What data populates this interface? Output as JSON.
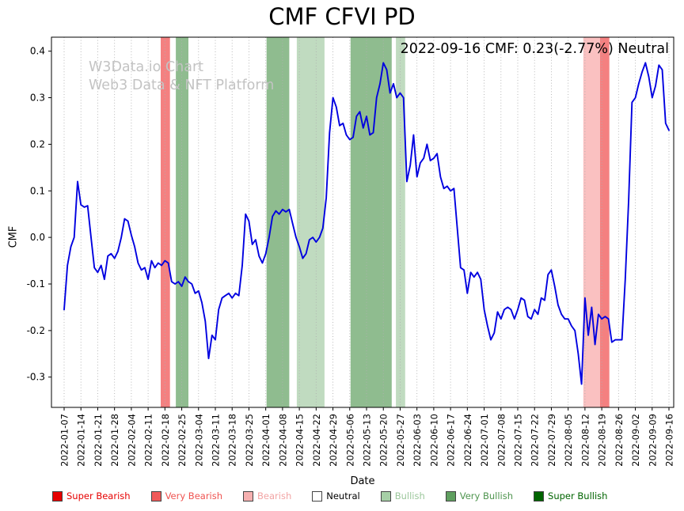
{
  "chart_data": {
    "type": "line",
    "title": "CMF CFVI PD",
    "annotation": "2022-09-16 CMF: 0.23(-2.77%) Neutral",
    "watermark_line1": "W3Data.io Chart",
    "watermark_line2": "Web3 Data & NFT Platform",
    "xlabel": "Date",
    "ylabel": "CMF",
    "ylim": [
      -0.365,
      0.43
    ],
    "yticks": [
      0.4,
      0.3,
      0.2,
      0.1,
      0.0,
      -0.1,
      -0.2,
      -0.3
    ],
    "ytick_labels": [
      "0.4",
      "0.3",
      "0.2",
      "0.1",
      "0.0",
      "-0.1",
      "-0.2",
      "-0.3"
    ],
    "x_tick_labels": [
      "2022-01-07",
      "2022-01-14",
      "2022-01-21",
      "2022-01-28",
      "2022-02-04",
      "2022-02-11",
      "2022-02-18",
      "2022-02-25",
      "2022-03-04",
      "2022-03-11",
      "2022-03-18",
      "2022-03-25",
      "2022-04-01",
      "2022-04-08",
      "2022-04-15",
      "2022-04-22",
      "2022-04-29",
      "2022-05-06",
      "2022-05-13",
      "2022-05-20",
      "2022-05-27",
      "2022-06-03",
      "2022-06-10",
      "2022-06-17",
      "2022-06-24",
      "2022-07-01",
      "2022-07-08",
      "2022-07-15",
      "2022-07-22",
      "2022-07-29",
      "2022-08-05",
      "2022-08-12",
      "2022-08-19",
      "2022-08-26",
      "2022-09-02",
      "2022-09-09",
      "2022-09-16"
    ],
    "grid": "vertical-dotted",
    "line_color": "#0000e0",
    "series": [
      {
        "name": "CMF",
        "values": [
          -0.155,
          -0.06,
          -0.02,
          0.0,
          0.12,
          0.07,
          0.065,
          0.068,
          0.0,
          -0.065,
          -0.075,
          -0.06,
          -0.09,
          -0.04,
          -0.035,
          -0.045,
          -0.03,
          0.0,
          0.04,
          0.035,
          0.005,
          -0.02,
          -0.055,
          -0.07,
          -0.065,
          -0.09,
          -0.05,
          -0.065,
          -0.055,
          -0.06,
          -0.05,
          -0.055,
          -0.095,
          -0.1,
          -0.095,
          -0.105,
          -0.085,
          -0.095,
          -0.1,
          -0.12,
          -0.115,
          -0.14,
          -0.18,
          -0.26,
          -0.21,
          -0.22,
          -0.155,
          -0.13,
          -0.125,
          -0.12,
          -0.13,
          -0.12,
          -0.125,
          -0.06,
          0.05,
          0.035,
          -0.015,
          -0.005,
          -0.04,
          -0.055,
          -0.035,
          0.0,
          0.045,
          0.057,
          0.05,
          0.06,
          0.055,
          0.06,
          0.03,
          0.0,
          -0.02,
          -0.045,
          -0.035,
          -0.005,
          0.0,
          -0.01,
          0.0,
          0.02,
          0.085,
          0.225,
          0.3,
          0.28,
          0.24,
          0.245,
          0.22,
          0.21,
          0.215,
          0.26,
          0.27,
          0.235,
          0.26,
          0.22,
          0.225,
          0.3,
          0.33,
          0.375,
          0.36,
          0.31,
          0.33,
          0.3,
          0.31,
          0.3,
          0.12,
          0.155,
          0.22,
          0.13,
          0.16,
          0.17,
          0.2,
          0.165,
          0.17,
          0.18,
          0.13,
          0.105,
          0.11,
          0.1,
          0.105,
          0.02,
          -0.065,
          -0.07,
          -0.12,
          -0.075,
          -0.085,
          -0.075,
          -0.09,
          -0.155,
          -0.19,
          -0.22,
          -0.205,
          -0.16,
          -0.175,
          -0.155,
          -0.15,
          -0.155,
          -0.175,
          -0.155,
          -0.13,
          -0.135,
          -0.17,
          -0.175,
          -0.155,
          -0.165,
          -0.13,
          -0.135,
          -0.08,
          -0.07,
          -0.105,
          -0.145,
          -0.165,
          -0.175,
          -0.175,
          -0.19,
          -0.2,
          -0.25,
          -0.315,
          -0.13,
          -0.21,
          -0.15,
          -0.23,
          -0.165,
          -0.175,
          -0.17,
          -0.175,
          -0.225,
          -0.22,
          -0.22,
          -0.22,
          -0.09,
          0.08,
          0.29,
          0.3,
          0.33,
          0.355,
          0.375,
          0.345,
          0.3,
          0.325,
          0.37,
          0.36,
          0.245,
          0.23
        ]
      }
    ],
    "band_colors": {
      "super-bearish": "rgba(230,0,0,0.8)",
      "very-bearish": "rgba(240,85,85,0.75)",
      "bearish": "rgba(247,160,160,0.65)",
      "bullish": "rgba(150,195,150,0.6)",
      "very-bullish": "rgba(95,160,95,0.7)",
      "super-bullish": "rgba(0,100,0,0.8)"
    },
    "bands": [
      {
        "sentiment": "very-bearish",
        "from_week": 5.75,
        "to_week": 6.3
      },
      {
        "sentiment": "very-bullish",
        "from_week": 6.65,
        "to_week": 7.4
      },
      {
        "sentiment": "very-bullish",
        "from_week": 12.05,
        "to_week": 13.4
      },
      {
        "sentiment": "bullish",
        "from_week": 13.85,
        "to_week": 15.5
      },
      {
        "sentiment": "very-bullish",
        "from_week": 17.05,
        "to_week": 19.5
      },
      {
        "sentiment": "bullish",
        "from_week": 19.75,
        "to_week": 20.3
      },
      {
        "sentiment": "bearish",
        "from_week": 30.9,
        "to_week": 31.9
      },
      {
        "sentiment": "very-bearish",
        "from_week": 31.9,
        "to_week": 32.45
      }
    ],
    "legend_position": "bottom",
    "legend": [
      {
        "label": "Super Bearish",
        "swatch": "#e60000",
        "text_color": "#e60000"
      },
      {
        "label": "Very Bearish",
        "swatch": "#f05a5a",
        "text_color": "#ef5350"
      },
      {
        "label": "Bearish",
        "swatch": "#f6b0b0",
        "text_color": "#f2a4a4"
      },
      {
        "label": "Neutral",
        "swatch": "#ffffff",
        "text_color": "#000000"
      },
      {
        "label": "Bullish",
        "swatch": "#a6cfa6",
        "text_color": "#9cc79c"
      },
      {
        "label": "Very Bullish",
        "swatch": "#5f9f5f",
        "text_color": "#4e944e"
      },
      {
        "label": "Super Bullish",
        "swatch": "#006400",
        "text_color": "#006400"
      }
    ]
  }
}
